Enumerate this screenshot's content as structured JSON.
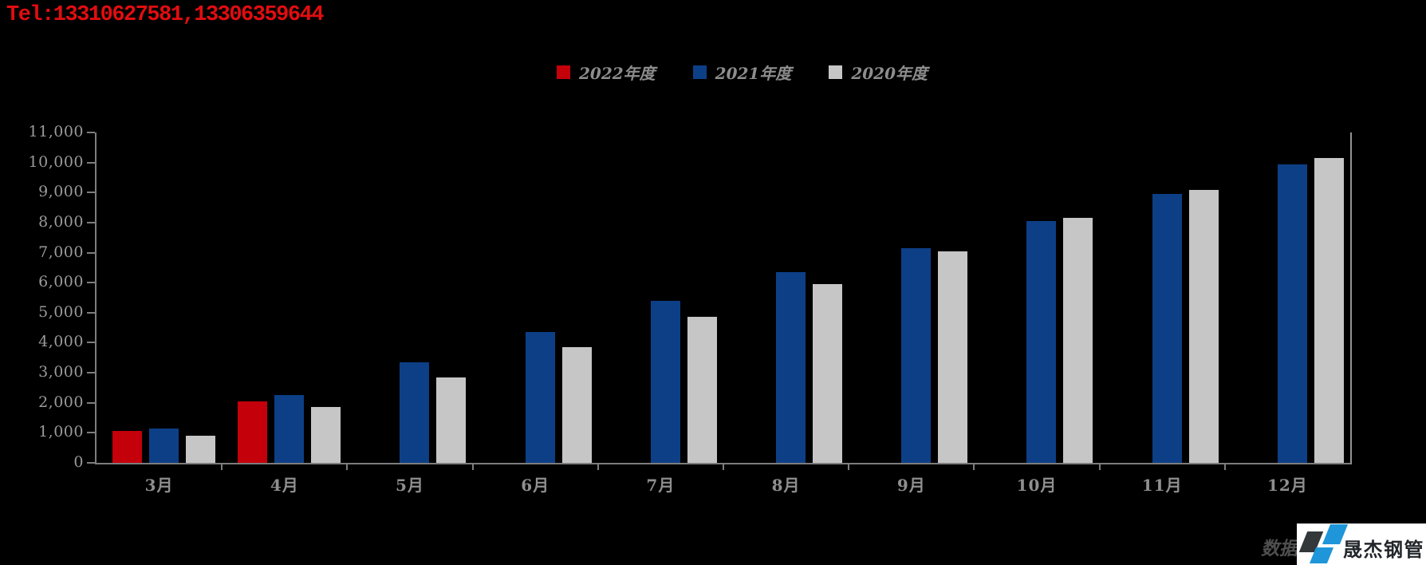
{
  "tel_line": "Tel:13310627581,13306359644",
  "source_note": "数据来源:",
  "logo": {
    "text": "晟杰钢管",
    "colors": {
      "dark": "#33383b",
      "blue": "#1e96d9",
      "background": "#ffffff"
    }
  },
  "colors": {
    "background": "#000000",
    "tel_text": "#e20d10",
    "axis": "#7d7d7d",
    "axis_labels": "#9a9a9a",
    "legend_text": "#8d8d8d"
  },
  "chart_data": {
    "type": "bar",
    "title": "",
    "xlabel": "",
    "ylabel": "",
    "categories": [
      "3月",
      "4月",
      "5月",
      "6月",
      "7月",
      "8月",
      "9月",
      "10月",
      "11月",
      "12月"
    ],
    "series": [
      {
        "name": "2022年度",
        "color": "#c4000a",
        "values": [
          1050,
          2050,
          null,
          null,
          null,
          null,
          null,
          null,
          null,
          null
        ]
      },
      {
        "name": "2021年度",
        "color": "#0d3f86",
        "values": [
          1150,
          2250,
          3350,
          4350,
          5400,
          6350,
          7150,
          8050,
          8950,
          9950
        ]
      },
      {
        "name": "2020年度",
        "color": "#c6c6c6",
        "values": [
          900,
          1850,
          2850,
          3850,
          4850,
          5950,
          7050,
          8150,
          9100,
          10150
        ]
      }
    ],
    "ylim": [
      0,
      11000
    ],
    "ytick_step": 1000,
    "yticklabels": [
      "0",
      "1,000",
      "2,000",
      "3,000",
      "4,000",
      "5,000",
      "6,000",
      "7,000",
      "8,000",
      "9,000",
      "10,000",
      "11,000"
    ],
    "grid": false,
    "legend_position": "top-center"
  }
}
